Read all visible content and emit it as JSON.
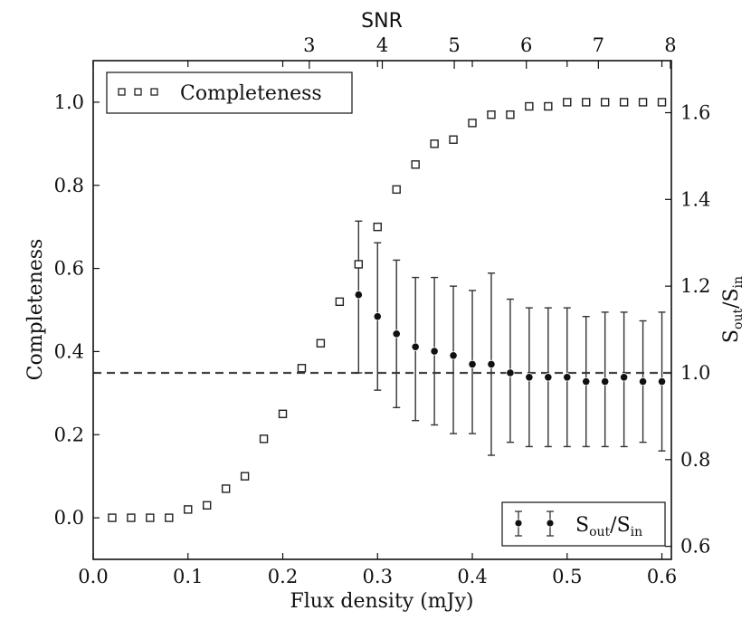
{
  "chart_data": {
    "type": "scatter",
    "xlabel": "Flux density (mJy)",
    "ylabel": "Completeness",
    "y2label_main": "S",
    "y2label_sub1": "out",
    "y2label_mid": "/S",
    "y2label_sub2": "in",
    "top_axis_label": "SNR",
    "xlim": [
      0.0,
      0.61
    ],
    "ylim": [
      -0.1,
      1.1
    ],
    "y2lim": [
      0.57,
      1.72
    ],
    "x_ticks": [
      "0.0",
      "0.1",
      "0.2",
      "0.3",
      "0.4",
      "0.5",
      "0.6"
    ],
    "y_ticks": [
      "0.0",
      "0.2",
      "0.4",
      "0.6",
      "0.8",
      "1.0"
    ],
    "y2_ticks": [
      "0.6",
      "0.8",
      "1.0",
      "1.2",
      "1.4",
      "1.6"
    ],
    "top_ticks": [
      {
        "label": "3",
        "x": 0.228
      },
      {
        "label": "4",
        "x": 0.305
      },
      {
        "label": "5",
        "x": 0.381
      },
      {
        "label": "6",
        "x": 0.457
      },
      {
        "label": "7",
        "x": 0.533
      },
      {
        "label": "8",
        "x": 0.609
      }
    ],
    "reference_line": {
      "axis": "y2",
      "value": 1.0,
      "style": "dashed"
    },
    "legend_completeness": "Completeness",
    "legend_ratio_main": "S",
    "legend_ratio_sub1": "out",
    "legend_ratio_mid": "/S",
    "legend_ratio_sub2": "in",
    "series": [
      {
        "name": "Completeness",
        "axis": "y",
        "marker": "open-square",
        "x": [
          0.02,
          0.04,
          0.06,
          0.08,
          0.1,
          0.12,
          0.14,
          0.16,
          0.18,
          0.2,
          0.22,
          0.24,
          0.26,
          0.28,
          0.3,
          0.32,
          0.34,
          0.36,
          0.38,
          0.4,
          0.42,
          0.44,
          0.46,
          0.48,
          0.5,
          0.52,
          0.54,
          0.56,
          0.58,
          0.6
        ],
        "y": [
          0.0,
          0.0,
          0.0,
          0.0,
          0.02,
          0.03,
          0.07,
          0.1,
          0.19,
          0.25,
          0.36,
          0.42,
          0.52,
          0.61,
          0.7,
          0.79,
          0.85,
          0.9,
          0.91,
          0.95,
          0.97,
          0.97,
          0.99,
          0.99,
          1.0,
          1.0,
          1.0,
          1.0,
          1.0,
          1.0
        ]
      },
      {
        "name": "Sout/Sin",
        "axis": "y2",
        "marker": "filled-circle-errorbar",
        "x": [
          0.28,
          0.3,
          0.32,
          0.34,
          0.36,
          0.38,
          0.4,
          0.42,
          0.44,
          0.46,
          0.48,
          0.5,
          0.52,
          0.54,
          0.56,
          0.58,
          0.6
        ],
        "y": [
          1.18,
          1.13,
          1.09,
          1.06,
          1.05,
          1.04,
          1.02,
          1.02,
          1.0,
          0.99,
          0.99,
          0.99,
          0.98,
          0.98,
          0.99,
          0.98,
          0.98
        ],
        "err_low": [
          1.0,
          0.96,
          0.92,
          0.89,
          0.88,
          0.86,
          0.86,
          0.81,
          0.84,
          0.83,
          0.83,
          0.83,
          0.83,
          0.83,
          0.83,
          0.84,
          0.82
        ],
        "err_high": [
          1.35,
          1.3,
          1.26,
          1.22,
          1.22,
          1.2,
          1.19,
          1.23,
          1.17,
          1.15,
          1.15,
          1.15,
          1.13,
          1.14,
          1.14,
          1.12,
          1.14
        ]
      }
    ]
  }
}
